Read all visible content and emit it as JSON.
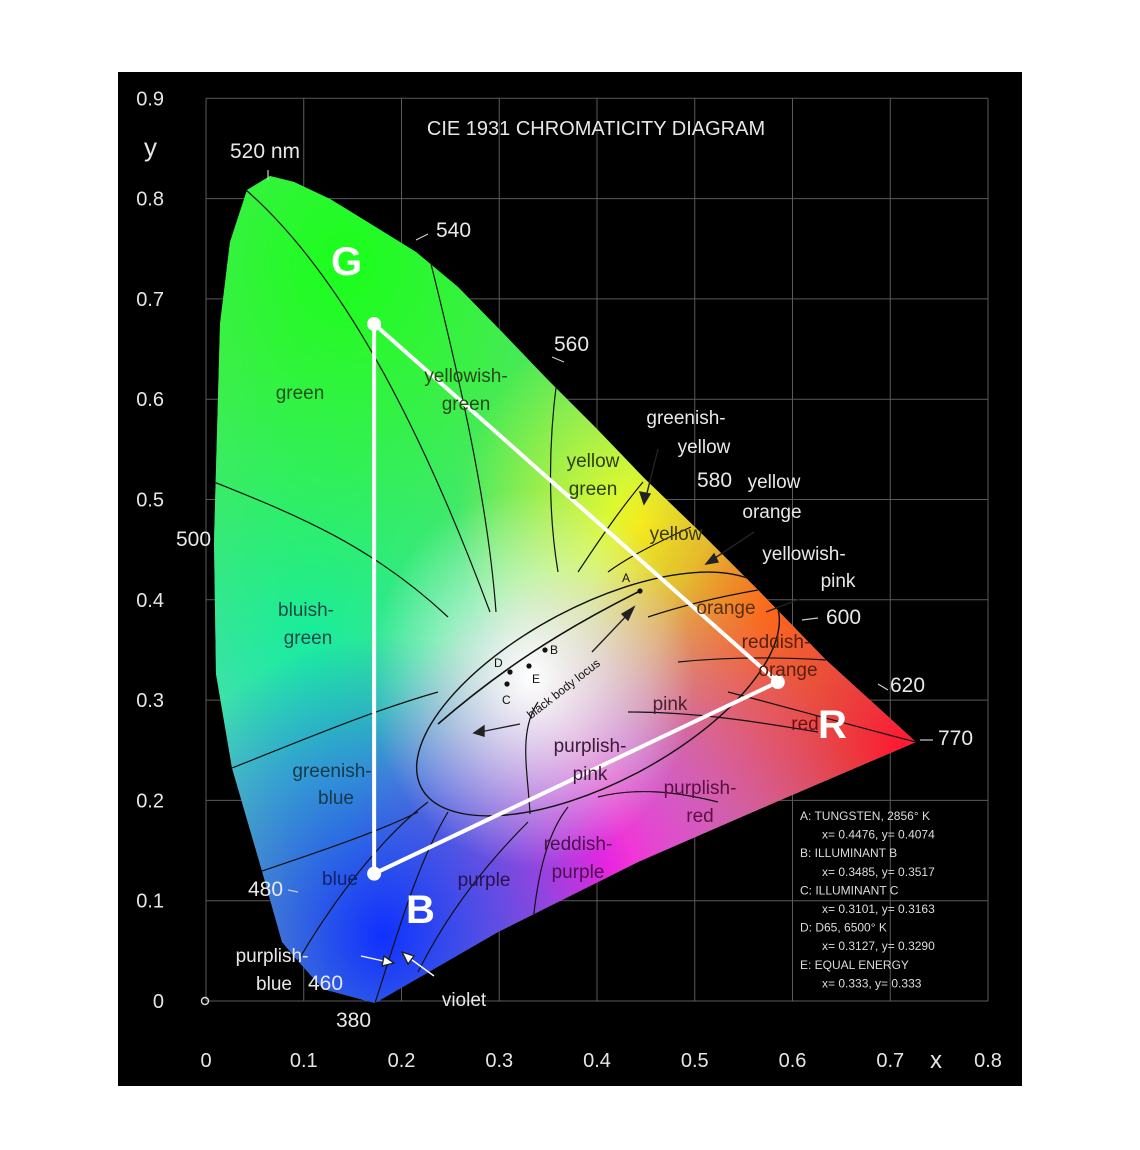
{
  "title": "CIE 1931 CHROMATICITY DIAGRAM",
  "axes": {
    "x_label": "x",
    "y_label": "y",
    "x_ticks": [
      "0",
      "0.1",
      "0.2",
      "0.3",
      "0.4",
      "0.5",
      "0.6",
      "0.7",
      "0.8"
    ],
    "y_ticks": [
      "0",
      "0.1",
      "0.2",
      "0.3",
      "0.4",
      "0.5",
      "0.6",
      "0.7",
      "0.8",
      "0.9"
    ]
  },
  "wavelengths": {
    "w520": "520 nm",
    "w540": "540",
    "w560": "560",
    "w580": "580",
    "w600": "600",
    "w620": "620",
    "w770": "770",
    "w500": "500",
    "w480": "480",
    "w460": "460",
    "w380": "380"
  },
  "regions": {
    "green": "green",
    "yellowish_green_1": "yellowish-",
    "yellowish_green_2": "green",
    "greenish_yellow_1": "greenish-",
    "greenish_yellow_2": "yellow",
    "yellow_green_1": "yellow",
    "yellow_green_2": "green",
    "yellow": "yellow",
    "yellow_orange_1": "yellow",
    "yellow_orange_2": "orange",
    "yellowish_pink_1": "yellowish-",
    "yellowish_pink_2": "pink",
    "orange": "orange",
    "reddish_orange_1": "reddish-",
    "reddish_orange_2": "orange",
    "red": "red",
    "pink": "pink",
    "purplish_pink_1": "purplish-",
    "purplish_pink_2": "pink",
    "purplish_red_1": "purplish-",
    "purplish_red_2": "red",
    "reddish_purple_1": "reddish-",
    "reddish_purple_2": "purple",
    "purple": "purple",
    "bluish_green_1": "bluish-",
    "bluish_green_2": "green",
    "greenish_blue_1": "greenish-",
    "greenish_blue_2": "blue",
    "blue": "blue",
    "purplish_blue_1": "purplish-",
    "purplish_blue_2": "blue",
    "violet": "violet",
    "black_body_locus": "black body locus"
  },
  "points": {
    "A": "A",
    "B": "B",
    "C": "C",
    "D": "D",
    "E": "E"
  },
  "gamut": {
    "R": "R",
    "G": "G",
    "B": "B",
    "R_xy": [
      0.585,
      0.318
    ],
    "G_xy": [
      0.172,
      0.675
    ],
    "B_xy": [
      0.172,
      0.127
    ],
    "color": "#ffffff"
  },
  "legend": [
    "A:  TUNGSTEN, 2856° K",
    "x= 0.4476, y= 0.4074",
    "B:  ILLUMINANT B",
    "x= 0.3485, y= 0.3517",
    "C:  ILLUMINANT C",
    "x= 0.3101, y= 0.3163",
    "D:  D65, 6500° K",
    "x= 0.3127, y= 0.3290",
    "E:  EQUAL ENERGY",
    "x= 0.333, y= 0.333"
  ]
}
